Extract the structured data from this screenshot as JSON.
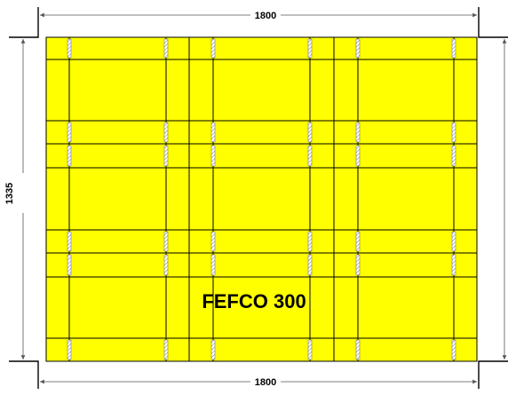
{
  "drawing": {
    "top_width": "1800",
    "bottom_width": "1800",
    "height": "1335",
    "label": "FEFCO 300",
    "panel_color": "#ffff00"
  }
}
